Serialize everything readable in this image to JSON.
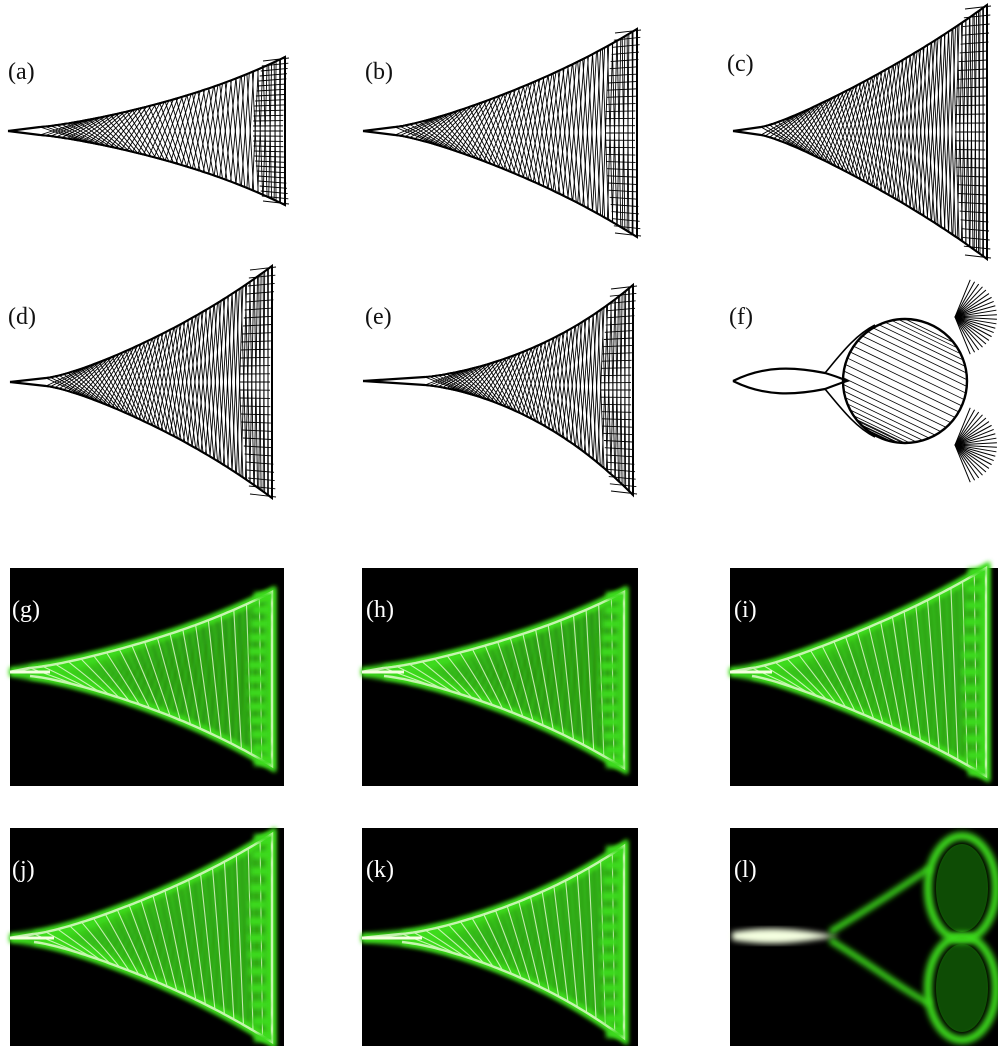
{
  "colors": {
    "line": "#000000",
    "photo_bg": "#000000",
    "glow_core": "#f4ffe0",
    "glow_green": "#3ddc1a",
    "glow_edge": "#1a8a0a"
  },
  "panels": {
    "a": {
      "label": "(a)",
      "kind": "line-fan-diagram"
    },
    "b": {
      "label": "(b)",
      "kind": "line-fan-diagram"
    },
    "c": {
      "label": "(c)",
      "kind": "line-fan-diagram"
    },
    "d": {
      "label": "(d)",
      "kind": "line-fan-diagram"
    },
    "e": {
      "label": "(e)",
      "kind": "line-fan-diagram"
    },
    "f": {
      "label": "(f)",
      "kind": "line-fan-diagram"
    },
    "g": {
      "label": "(g)",
      "kind": "green-fan-photo"
    },
    "h": {
      "label": "(h)",
      "kind": "green-fan-photo"
    },
    "i": {
      "label": "(i)",
      "kind": "green-fan-photo"
    },
    "j": {
      "label": "(j)",
      "kind": "green-fan-photo"
    },
    "k": {
      "label": "(k)",
      "kind": "green-fan-photo"
    },
    "l": {
      "label": "(l)",
      "kind": "green-fan-photo"
    }
  }
}
